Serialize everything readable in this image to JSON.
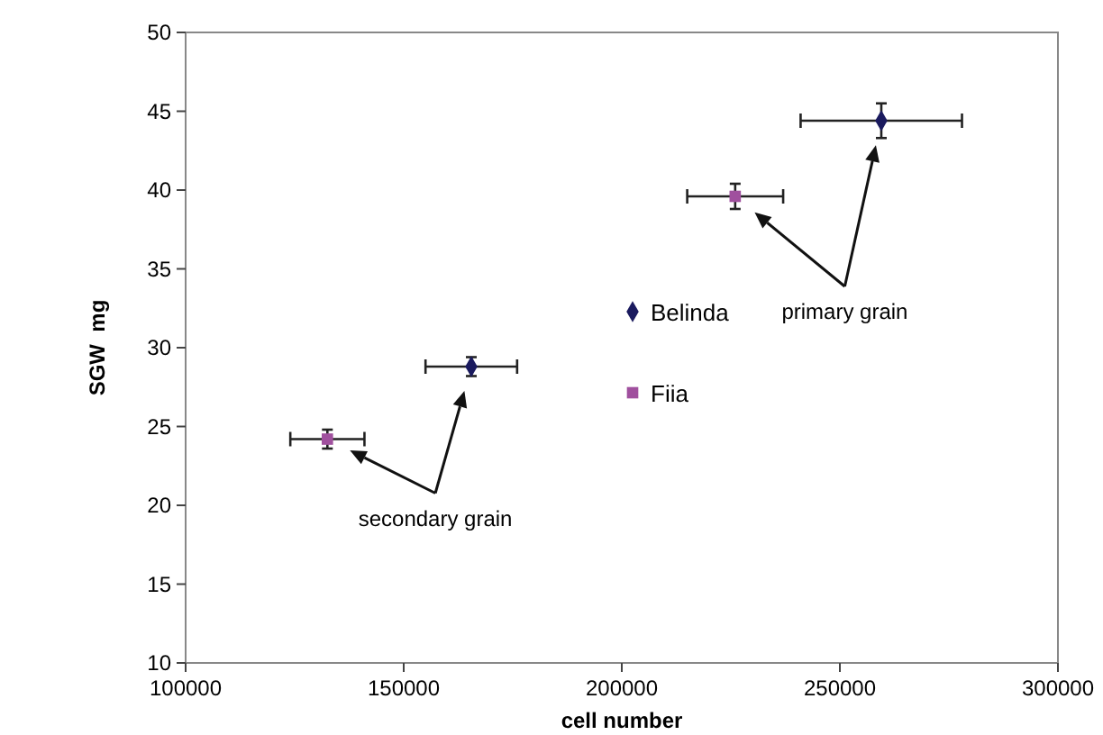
{
  "chart_data": {
    "type": "scatter",
    "xlabel": "cell number",
    "ylabel": "SGW  mg",
    "xlim": [
      100000,
      300000
    ],
    "xticks": [
      100000,
      150000,
      200000,
      250000,
      300000
    ],
    "ylim": [
      10,
      50
    ],
    "yticks": [
      10,
      15,
      20,
      25,
      30,
      35,
      40,
      45,
      50
    ],
    "grid": false,
    "legend": "center",
    "annotations": [
      "secondary grain",
      "primary grain"
    ],
    "series": [
      {
        "name": "Belinda",
        "color": "#1a1a5e",
        "marker": "diamond",
        "x": [
          165500,
          259500
        ],
        "values": [
          28.8,
          44.4
        ],
        "errors": [
          0.6,
          1.1
        ],
        "xerrors": [
          10500,
          18500
        ]
      },
      {
        "name": "Fiia",
        "color": "#a0509e",
        "marker": "square",
        "x": [
          132500,
          226000
        ],
        "values": [
          24.2,
          39.6
        ],
        "errors": [
          0.6,
          0.8
        ],
        "xerrors": [
          8500,
          11000
        ]
      }
    ]
  }
}
